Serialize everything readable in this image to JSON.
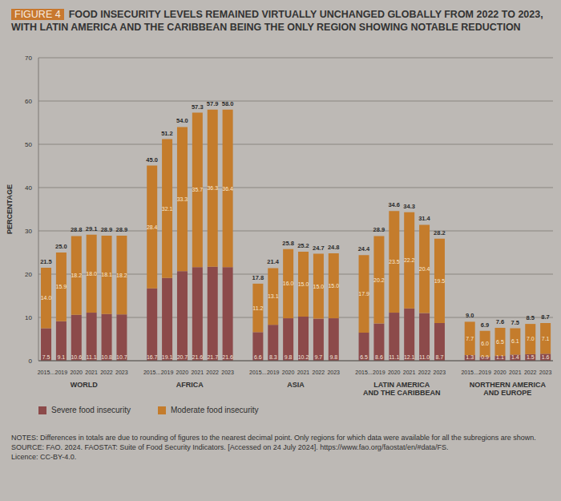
{
  "chart_data": {
    "type": "bar",
    "figure_label": "FIGURE 4",
    "title": "FOOD INSECURITY LEVELS REMAINED VIRTUALLY UNCHANGED GLOBALLY FROM 2022 TO 2023, WITH LATIN AMERICA AND THE CARIBBEAN BEING THE ONLY REGION SHOWING NOTABLE REDUCTION",
    "y_label": "PERCENTAGE",
    "groups": [
      "WORLD",
      "AFRICA",
      "ASIA",
      "LATIN AMERICA AND THE CARIBBEAN",
      "NORTHERN AMERICA AND EUROPE"
    ],
    "categories": [
      "2015...",
      "2019",
      "2020",
      "2021",
      "2022",
      "2023",
      null,
      "2015...",
      "2019",
      "2020",
      "2021",
      "2022",
      "2023",
      null,
      "2015...",
      "2019",
      "2020",
      "2021",
      "2022",
      "2023",
      null,
      "2015...",
      "2019",
      "2020",
      "2021",
      "2022",
      "2023",
      null,
      "2015...",
      "2019",
      "2020",
      "2021",
      "2022",
      "2023"
    ],
    "series": [
      {
        "name": "Severe food insecurity",
        "color": "#8c4a4a",
        "values": [
          7.5,
          9.1,
          10.6,
          11.1,
          10.8,
          10.7,
          null,
          16.7,
          19.1,
          20.7,
          21.6,
          21.7,
          21.6,
          null,
          6.6,
          8.3,
          9.8,
          10.2,
          9.7,
          9.8,
          null,
          6.5,
          8.6,
          11.1,
          12.1,
          11.0,
          8.7,
          null,
          1.3,
          0.9,
          1.1,
          1.4,
          1.5,
          1.6
        ],
        "value_labels": [
          "7.5",
          "9.1",
          "10.6",
          "11.1",
          "10.8",
          "10.7",
          null,
          "16.7",
          "19.1",
          "20.7",
          "21.6",
          "21.7",
          "21.6",
          null,
          "6.6",
          "8.3",
          "9.8",
          "10.2",
          "9.7",
          "9.8",
          null,
          "6.5",
          "8.6",
          "11.1",
          "12.1",
          "11.0",
          "8.7",
          null,
          "1.3",
          "0.9",
          "1.1",
          "1.4",
          "1.5",
          "1.6"
        ]
      },
      {
        "name": "Moderate food insecurity",
        "color": "#c47c2c",
        "values": [
          14.0,
          15.9,
          18.2,
          18.0,
          18.1,
          18.2,
          null,
          28.4,
          32.1,
          33.3,
          35.7,
          36.3,
          36.4,
          null,
          11.2,
          13.1,
          16.0,
          15.0,
          15.0,
          15.0,
          null,
          17.9,
          20.2,
          23.5,
          22.2,
          20.4,
          19.5,
          null,
          7.7,
          6.0,
          6.5,
          6.1,
          7.0,
          7.1
        ],
        "value_labels": [
          "14.0",
          "15.9",
          "18.2",
          "18.0",
          "18.1",
          "18.2",
          null,
          "28.4",
          "32.1",
          "33.3",
          "35.7",
          "36.3",
          "36.4",
          null,
          "11.2",
          "13.1",
          "16.0",
          "15.0",
          "15.0",
          "15.0",
          null,
          "17.9",
          "20.2",
          "23.5",
          "22.2",
          "20.4",
          "19.5",
          null,
          "7.7",
          "6.0",
          "6.5",
          "6.1",
          "7.0",
          "7.1"
        ]
      }
    ],
    "totals": {
      "values": [
        21.5,
        25.0,
        28.8,
        29.1,
        28.9,
        28.9,
        null,
        45.0,
        51.2,
        54.0,
        57.3,
        57.9,
        58.0,
        null,
        17.8,
        21.4,
        25.8,
        25.2,
        24.7,
        24.8,
        null,
        24.4,
        28.9,
        34.6,
        34.3,
        31.4,
        28.2,
        null,
        9.0,
        6.9,
        7.6,
        7.5,
        8.5,
        8.7
      ],
      "value_labels": [
        "21.5",
        "25.0",
        "28.8",
        "29.1",
        "28.9",
        "28.9",
        null,
        "45.0",
        "51.2",
        "54.0",
        "57.3",
        "57.9",
        "58.0",
        null,
        "17.8",
        "21.4",
        "25.8",
        "25.2",
        "24.7",
        "24.8",
        null,
        "24.4",
        "28.9",
        "34.6",
        "34.3",
        "31.4",
        "28.2",
        null,
        "9.0",
        "6.9",
        "7.6",
        "7.5",
        "8.5",
        "8.7"
      ]
    },
    "ylim": [
      0,
      70
    ],
    "yticks": [
      0,
      10,
      20,
      30,
      40,
      50,
      60,
      70
    ],
    "grid": true,
    "stacked": true,
    "data_labels": true,
    "notes": "NOTES: Differences in totals are due to rounding of figures to the nearest decimal point. Only regions for which data were available for all the subregions are shown.",
    "source": "SOURCE: FAO. 2024. FAOSTAT: Suite of Food Security Indicators. [Accessed on 24 July 2024]. https://www.fao.org/faostat/en/#data/FS.",
    "licence": "Licence: CC-BY-4.0."
  }
}
